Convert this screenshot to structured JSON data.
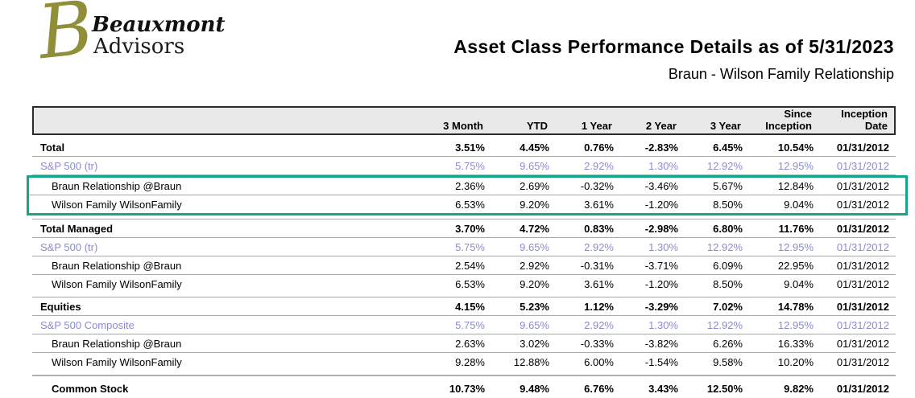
{
  "logo": {
    "monogram": "B",
    "name": "Beauxmont",
    "type": "Advisors"
  },
  "header": {
    "title": "Asset Class Performance Details as of 5/31/2023",
    "subtitle": "Braun - Wilson Family Relationship"
  },
  "colors": {
    "highlight_border": "#14a68a",
    "benchmark_text": "#8b8bd0",
    "header_bg": "#e9e9e9",
    "row_line": "#a8a8a8",
    "logo_monogram": "#8f8f3a"
  },
  "table": {
    "columns": [
      {
        "l1": "",
        "l2": "3 Month"
      },
      {
        "l1": "",
        "l2": "YTD"
      },
      {
        "l1": "",
        "l2": "1 Year"
      },
      {
        "l1": "",
        "l2": "2 Year"
      },
      {
        "l1": "",
        "l2": "3 Year"
      },
      {
        "l1": "Since",
        "l2": "Inception"
      },
      {
        "l1": "Inception",
        "l2": "Date"
      }
    ],
    "rows": [
      {
        "type": "group",
        "label": "Total",
        "values": [
          "3.51%",
          "4.45%",
          "0.76%",
          "-2.83%",
          "6.45%",
          "10.54%",
          "01/31/2012"
        ]
      },
      {
        "type": "benchmark",
        "label": "S&P 500 (tr)",
        "values": [
          "5.75%",
          "9.65%",
          "2.92%",
          "1.30%",
          "12.92%",
          "12.95%",
          "01/31/2012"
        ]
      },
      {
        "type": "entity",
        "label": "Braun Relationship @Braun",
        "highlighted": true,
        "values": [
          "2.36%",
          "2.69%",
          "-0.32%",
          "-3.46%",
          "5.67%",
          "12.84%",
          "01/31/2012"
        ]
      },
      {
        "type": "entity",
        "label": "Wilson Family WilsonFamily",
        "highlighted": true,
        "values": [
          "6.53%",
          "9.20%",
          "3.61%",
          "-1.20%",
          "8.50%",
          "9.04%",
          "01/31/2012"
        ]
      },
      {
        "type": "group",
        "label": "Total Managed",
        "values": [
          "3.70%",
          "4.72%",
          "0.83%",
          "-2.98%",
          "6.80%",
          "11.76%",
          "01/31/2012"
        ]
      },
      {
        "type": "benchmark",
        "label": "S&P 500 (tr)",
        "values": [
          "5.75%",
          "9.65%",
          "2.92%",
          "1.30%",
          "12.92%",
          "12.95%",
          "01/31/2012"
        ]
      },
      {
        "type": "entity",
        "label": "Braun Relationship @Braun",
        "values": [
          "2.54%",
          "2.92%",
          "-0.31%",
          "-3.71%",
          "6.09%",
          "22.95%",
          "01/31/2012"
        ]
      },
      {
        "type": "entity",
        "label": "Wilson Family WilsonFamily",
        "values": [
          "6.53%",
          "9.20%",
          "3.61%",
          "-1.20%",
          "8.50%",
          "9.04%",
          "01/31/2012"
        ]
      },
      {
        "type": "group",
        "label": "Equities",
        "values": [
          "4.15%",
          "5.23%",
          "1.12%",
          "-3.29%",
          "7.02%",
          "14.78%",
          "01/31/2012"
        ]
      },
      {
        "type": "benchmark",
        "label": "S&P 500 Composite",
        "values": [
          "5.75%",
          "9.65%",
          "2.92%",
          "1.30%",
          "12.92%",
          "12.95%",
          "01/31/2012"
        ]
      },
      {
        "type": "entity",
        "label": "Braun Relationship @Braun",
        "values": [
          "2.63%",
          "3.02%",
          "-0.33%",
          "-3.82%",
          "6.26%",
          "16.33%",
          "01/31/2012"
        ]
      },
      {
        "type": "entity",
        "label": "Wilson Family WilsonFamily",
        "values": [
          "9.28%",
          "12.88%",
          "6.00%",
          "-1.54%",
          "9.58%",
          "10.20%",
          "01/31/2012"
        ]
      },
      {
        "type": "subgroup",
        "label": "Common Stock",
        "values": [
          "10.73%",
          "9.48%",
          "6.76%",
          "3.43%",
          "12.50%",
          "9.82%",
          "01/31/2012"
        ]
      }
    ]
  }
}
